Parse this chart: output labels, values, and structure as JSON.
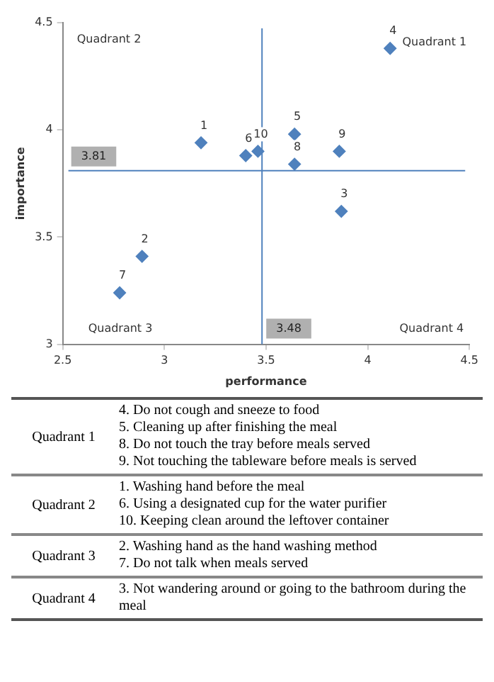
{
  "chart_data": {
    "type": "scatter",
    "xlabel": "performance",
    "ylabel": "importance",
    "xlim": [
      2.5,
      4.5
    ],
    "xticks": [
      2.5,
      3,
      3.5,
      4,
      4.5
    ],
    "ylim": [
      3,
      4.5
    ],
    "yticks": [
      3,
      3.5,
      4,
      4.5
    ],
    "grid": false,
    "marker": "diamond",
    "series": [
      {
        "color": "#4f81bd",
        "x": [
          3.18,
          2.89,
          3.87,
          4.11,
          3.64,
          3.4,
          2.78,
          3.64,
          3.86,
          3.46
        ],
        "values": [
          3.94,
          3.41,
          3.62,
          4.38,
          3.98,
          3.88,
          3.24,
          3.84,
          3.9,
          3.9
        ]
      }
    ],
    "ref_lines": [
      {
        "axis": "y",
        "value": 3.81,
        "label": "3.81",
        "color": "#4f81bd"
      },
      {
        "axis": "x",
        "value": 3.48,
        "label": "3.48",
        "color": "#4f81bd"
      }
    ],
    "annotations": [
      {
        "text": "1",
        "x": 3.18,
        "y": 3.94
      },
      {
        "text": "2",
        "x": 2.89,
        "y": 3.41
      },
      {
        "text": "3",
        "x": 3.87,
        "y": 3.62
      },
      {
        "text": "4",
        "x": 4.11,
        "y": 4.38
      },
      {
        "text": "5",
        "x": 3.64,
        "y": 3.98
      },
      {
        "text": "6",
        "x": 3.4,
        "y": 3.88
      },
      {
        "text": "7",
        "x": 2.78,
        "y": 3.24
      },
      {
        "text": "8",
        "x": 3.64,
        "y": 3.84
      },
      {
        "text": "9",
        "x": 3.86,
        "y": 3.9
      },
      {
        "text": "10",
        "x": 3.46,
        "y": 3.9
      },
      "Quadrant 1",
      "Quadrant 2",
      "Quadrant 3",
      "Quadrant 4",
      "Quadrant 1",
      "4. Do not cough and sneeze to food\n5. Cleaning up after finishing the meal\n8. Do not touch the tray before meals served\n9. Not touching the tableware before meals is served",
      "Quadrant 2",
      "1. Washing hand before the meal\n6. Using a designated cup for the water purifier\n10. Keeping clean around the leftover container",
      "Quadrant 3",
      "2. Washing hand as the hand washing method\n7. Do not talk when meals served",
      "Quadrant 4",
      "3. Not wandering around or going to the bathroom during the meal"
    ]
  }
}
